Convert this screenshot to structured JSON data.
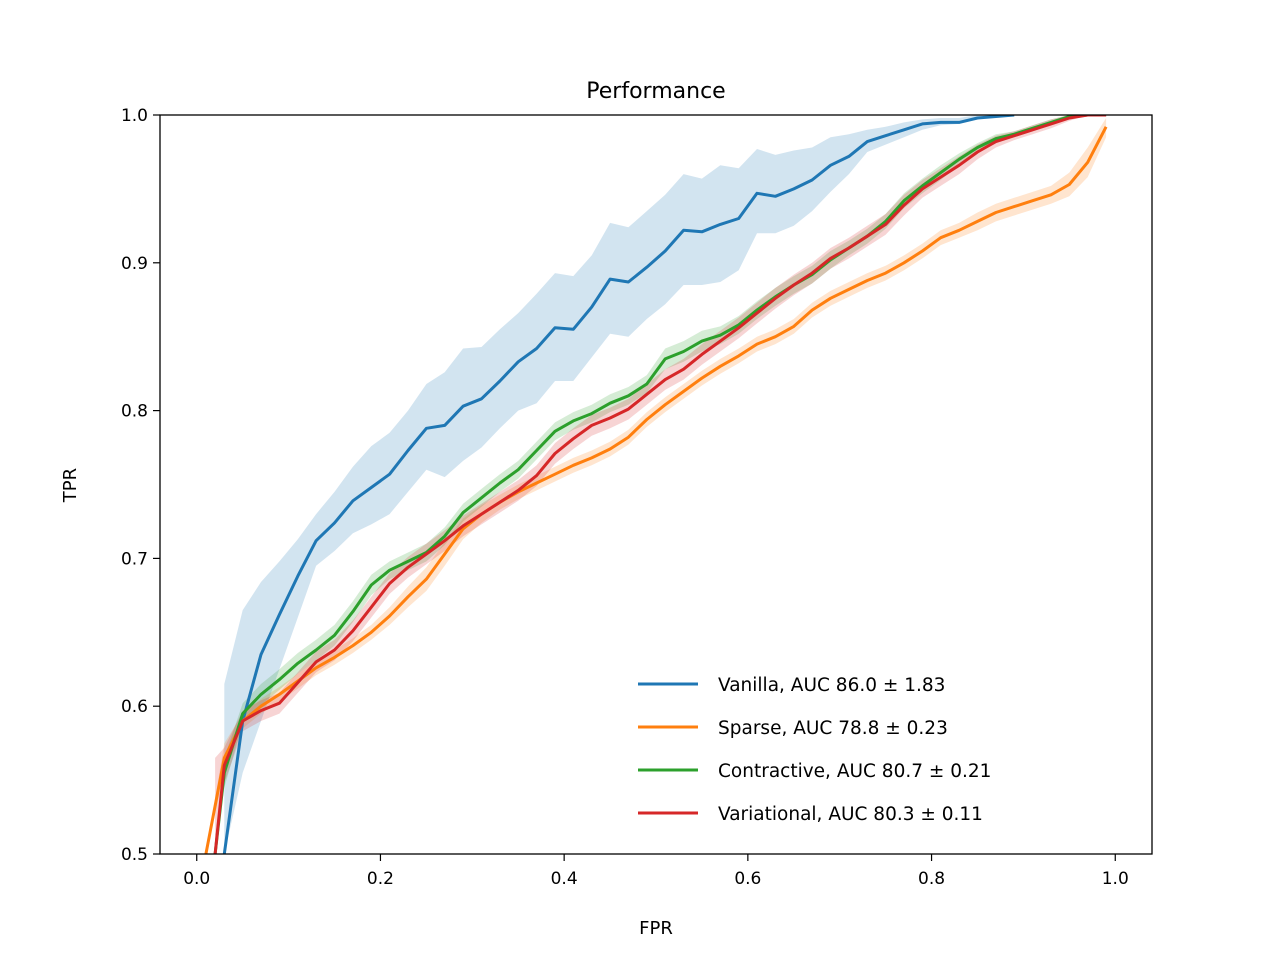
{
  "chart_data": {
    "type": "line",
    "title": "Performance",
    "xlabel": "FPR",
    "ylabel": "TPR",
    "xlim": [
      -0.04,
      1.04
    ],
    "ylim": [
      0.5,
      1.0
    ],
    "xticks": [
      "0.0",
      "0.2",
      "0.4",
      "0.6",
      "0.8",
      "1.0"
    ],
    "yticks": [
      "0.5",
      "0.6",
      "0.7",
      "0.8",
      "0.9",
      "1.0"
    ],
    "grid": false,
    "legend_position": "lower-right",
    "series": [
      {
        "name": "Vanilla, AUC 86.0 ± 1.83",
        "color": "#1f77b4",
        "x": [
          0.03,
          0.05,
          0.07,
          0.09,
          0.11,
          0.13,
          0.15,
          0.17,
          0.19,
          0.21,
          0.23,
          0.25,
          0.27,
          0.29,
          0.31,
          0.33,
          0.35,
          0.37,
          0.39,
          0.41,
          0.43,
          0.45,
          0.47,
          0.49,
          0.51,
          0.53,
          0.55,
          0.57,
          0.59,
          0.61,
          0.63,
          0.65,
          0.67,
          0.69,
          0.71,
          0.73,
          0.75,
          0.77,
          0.79,
          0.81,
          0.83,
          0.85,
          0.87,
          0.89
        ],
        "y": [
          0.5,
          0.59,
          0.635,
          0.662,
          0.688,
          0.712,
          0.724,
          0.739,
          0.748,
          0.757,
          0.773,
          0.788,
          0.79,
          0.803,
          0.808,
          0.82,
          0.833,
          0.842,
          0.856,
          0.855,
          0.87,
          0.889,
          0.887,
          0.897,
          0.908,
          0.922,
          0.921,
          0.926,
          0.93,
          0.947,
          0.945,
          0.95,
          0.956,
          0.966,
          0.972,
          0.982,
          0.986,
          0.99,
          0.994,
          0.995,
          0.995,
          0.998,
          0.999,
          1.0
        ],
        "band_low": [
          0.5,
          0.555,
          0.59,
          0.625,
          0.66,
          0.695,
          0.705,
          0.717,
          0.723,
          0.73,
          0.745,
          0.76,
          0.755,
          0.766,
          0.775,
          0.788,
          0.8,
          0.805,
          0.82,
          0.82,
          0.836,
          0.852,
          0.85,
          0.862,
          0.872,
          0.885,
          0.885,
          0.887,
          0.895,
          0.92,
          0.92,
          0.925,
          0.935,
          0.948,
          0.96,
          0.975,
          0.98,
          0.985,
          0.99,
          0.993,
          0.994,
          0.997,
          0.999,
          1.0
        ],
        "band_high": [
          0.615,
          0.665,
          0.684,
          0.698,
          0.713,
          0.73,
          0.745,
          0.762,
          0.776,
          0.785,
          0.8,
          0.818,
          0.826,
          0.842,
          0.843,
          0.855,
          0.866,
          0.879,
          0.893,
          0.891,
          0.905,
          0.927,
          0.924,
          0.935,
          0.946,
          0.96,
          0.957,
          0.966,
          0.964,
          0.977,
          0.973,
          0.976,
          0.978,
          0.985,
          0.987,
          0.99,
          0.992,
          0.995,
          0.997,
          0.998,
          0.998,
          1.0,
          1.0,
          1.0
        ]
      },
      {
        "name": "Sparse, AUC 78.8 ± 0.23",
        "color": "#ff7f0e",
        "x": [
          0.01,
          0.03,
          0.05,
          0.07,
          0.09,
          0.11,
          0.13,
          0.15,
          0.17,
          0.19,
          0.21,
          0.23,
          0.25,
          0.27,
          0.29,
          0.31,
          0.33,
          0.35,
          0.37,
          0.39,
          0.41,
          0.43,
          0.45,
          0.47,
          0.49,
          0.51,
          0.53,
          0.55,
          0.57,
          0.59,
          0.61,
          0.63,
          0.65,
          0.67,
          0.69,
          0.71,
          0.73,
          0.75,
          0.77,
          0.79,
          0.81,
          0.83,
          0.85,
          0.87,
          0.89,
          0.91,
          0.93,
          0.95,
          0.97,
          0.99
        ],
        "y": [
          0.5,
          0.565,
          0.59,
          0.6,
          0.608,
          0.617,
          0.626,
          0.633,
          0.641,
          0.65,
          0.661,
          0.674,
          0.686,
          0.703,
          0.72,
          0.73,
          0.738,
          0.745,
          0.751,
          0.757,
          0.763,
          0.768,
          0.774,
          0.782,
          0.794,
          0.804,
          0.813,
          0.822,
          0.83,
          0.837,
          0.845,
          0.85,
          0.857,
          0.868,
          0.876,
          0.882,
          0.888,
          0.893,
          0.9,
          0.908,
          0.917,
          0.922,
          0.928,
          0.934,
          0.938,
          0.942,
          0.946,
          0.953,
          0.968,
          0.992
        ],
        "band_low": [
          0.5,
          0.555,
          0.585,
          0.595,
          0.603,
          0.612,
          0.621,
          0.628,
          0.636,
          0.645,
          0.655,
          0.667,
          0.678,
          0.695,
          0.713,
          0.724,
          0.733,
          0.74,
          0.746,
          0.752,
          0.758,
          0.763,
          0.769,
          0.777,
          0.789,
          0.799,
          0.808,
          0.817,
          0.825,
          0.832,
          0.84,
          0.845,
          0.852,
          0.863,
          0.871,
          0.877,
          0.883,
          0.888,
          0.895,
          0.903,
          0.912,
          0.917,
          0.922,
          0.928,
          0.932,
          0.936,
          0.94,
          0.945,
          0.958,
          0.985
        ],
        "band_high": [
          0.5,
          0.575,
          0.595,
          0.605,
          0.613,
          0.622,
          0.631,
          0.638,
          0.646,
          0.655,
          0.667,
          0.681,
          0.694,
          0.711,
          0.727,
          0.736,
          0.743,
          0.75,
          0.756,
          0.762,
          0.768,
          0.773,
          0.779,
          0.787,
          0.799,
          0.809,
          0.818,
          0.827,
          0.835,
          0.842,
          0.85,
          0.855,
          0.862,
          0.873,
          0.881,
          0.887,
          0.893,
          0.898,
          0.905,
          0.913,
          0.922,
          0.927,
          0.934,
          0.94,
          0.944,
          0.948,
          0.952,
          0.961,
          0.978,
          0.998
        ]
      },
      {
        "name": "Contractive, AUC 80.7 ± 0.21",
        "color": "#2ca02c",
        "x": [
          0.02,
          0.03,
          0.05,
          0.07,
          0.09,
          0.11,
          0.13,
          0.15,
          0.17,
          0.19,
          0.21,
          0.23,
          0.25,
          0.27,
          0.29,
          0.31,
          0.33,
          0.35,
          0.37,
          0.39,
          0.41,
          0.43,
          0.45,
          0.47,
          0.49,
          0.51,
          0.53,
          0.55,
          0.57,
          0.59,
          0.61,
          0.63,
          0.65,
          0.67,
          0.69,
          0.71,
          0.73,
          0.75,
          0.77,
          0.79,
          0.81,
          0.83,
          0.85,
          0.87,
          0.89,
          0.91,
          0.93,
          0.95,
          0.97,
          0.99
        ],
        "y": [
          0.5,
          0.555,
          0.595,
          0.608,
          0.618,
          0.629,
          0.638,
          0.648,
          0.664,
          0.682,
          0.692,
          0.698,
          0.704,
          0.715,
          0.731,
          0.741,
          0.751,
          0.76,
          0.773,
          0.786,
          0.793,
          0.798,
          0.805,
          0.81,
          0.818,
          0.835,
          0.84,
          0.847,
          0.851,
          0.858,
          0.868,
          0.877,
          0.885,
          0.892,
          0.902,
          0.91,
          0.918,
          0.928,
          0.942,
          0.952,
          0.961,
          0.97,
          0.978,
          0.984,
          0.987,
          0.991,
          0.995,
          0.999,
          1.0,
          1.0
        ],
        "band_low": [
          0.5,
          0.545,
          0.588,
          0.601,
          0.611,
          0.622,
          0.631,
          0.641,
          0.657,
          0.675,
          0.686,
          0.692,
          0.698,
          0.709,
          0.725,
          0.735,
          0.745,
          0.754,
          0.767,
          0.78,
          0.787,
          0.792,
          0.799,
          0.804,
          0.812,
          0.828,
          0.833,
          0.84,
          0.845,
          0.852,
          0.862,
          0.871,
          0.879,
          0.886,
          0.896,
          0.905,
          0.913,
          0.923,
          0.937,
          0.947,
          0.956,
          0.966,
          0.975,
          0.981,
          0.985,
          0.989,
          0.993,
          0.998,
          1.0,
          1.0
        ],
        "band_high": [
          0.5,
          0.565,
          0.602,
          0.615,
          0.625,
          0.636,
          0.645,
          0.655,
          0.671,
          0.689,
          0.698,
          0.704,
          0.71,
          0.721,
          0.737,
          0.747,
          0.757,
          0.766,
          0.779,
          0.792,
          0.799,
          0.804,
          0.811,
          0.816,
          0.824,
          0.842,
          0.847,
          0.854,
          0.857,
          0.864,
          0.874,
          0.883,
          0.891,
          0.898,
          0.908,
          0.915,
          0.923,
          0.933,
          0.947,
          0.957,
          0.966,
          0.974,
          0.981,
          0.987,
          0.989,
          0.993,
          0.997,
          1.0,
          1.0,
          1.0
        ]
      },
      {
        "name": "Variational, AUC 80.3 ± 0.11",
        "color": "#d62728",
        "x": [
          0.02,
          0.03,
          0.05,
          0.07,
          0.09,
          0.11,
          0.13,
          0.15,
          0.17,
          0.19,
          0.21,
          0.23,
          0.25,
          0.27,
          0.29,
          0.31,
          0.33,
          0.35,
          0.37,
          0.39,
          0.41,
          0.43,
          0.45,
          0.47,
          0.49,
          0.51,
          0.53,
          0.55,
          0.57,
          0.59,
          0.61,
          0.63,
          0.65,
          0.67,
          0.69,
          0.71,
          0.73,
          0.75,
          0.77,
          0.79,
          0.81,
          0.83,
          0.85,
          0.87,
          0.89,
          0.91,
          0.93,
          0.95,
          0.97,
          0.99
        ],
        "y": [
          0.5,
          0.56,
          0.59,
          0.597,
          0.602,
          0.616,
          0.63,
          0.638,
          0.651,
          0.667,
          0.683,
          0.694,
          0.703,
          0.712,
          0.722,
          0.73,
          0.738,
          0.746,
          0.756,
          0.771,
          0.781,
          0.79,
          0.795,
          0.801,
          0.811,
          0.821,
          0.828,
          0.838,
          0.847,
          0.856,
          0.866,
          0.876,
          0.885,
          0.893,
          0.903,
          0.91,
          0.918,
          0.926,
          0.939,
          0.95,
          0.958,
          0.966,
          0.975,
          0.982,
          0.986,
          0.99,
          0.994,
          0.998,
          1.0,
          1.0
        ],
        "band_low": [
          0.5,
          0.548,
          0.583,
          0.59,
          0.595,
          0.609,
          0.623,
          0.631,
          0.644,
          0.66,
          0.676,
          0.687,
          0.696,
          0.705,
          0.715,
          0.723,
          0.731,
          0.739,
          0.749,
          0.764,
          0.774,
          0.783,
          0.788,
          0.794,
          0.804,
          0.814,
          0.821,
          0.831,
          0.84,
          0.849,
          0.859,
          0.869,
          0.878,
          0.886,
          0.896,
          0.903,
          0.911,
          0.919,
          0.932,
          0.944,
          0.952,
          0.96,
          0.97,
          0.978,
          0.983,
          0.987,
          0.991,
          0.996,
          1.0,
          1.0
        ],
        "band_high": [
          0.565,
          0.572,
          0.597,
          0.604,
          0.609,
          0.623,
          0.637,
          0.645,
          0.658,
          0.674,
          0.69,
          0.701,
          0.71,
          0.719,
          0.729,
          0.737,
          0.745,
          0.753,
          0.763,
          0.778,
          0.788,
          0.797,
          0.802,
          0.808,
          0.818,
          0.828,
          0.835,
          0.845,
          0.854,
          0.863,
          0.873,
          0.883,
          0.892,
          0.9,
          0.91,
          0.917,
          0.925,
          0.933,
          0.946,
          0.956,
          0.964,
          0.972,
          0.98,
          0.986,
          0.989,
          0.993,
          0.997,
          1.0,
          1.0,
          1.0
        ]
      }
    ]
  }
}
